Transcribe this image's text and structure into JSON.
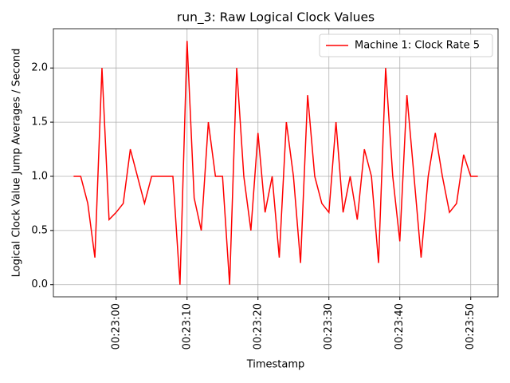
{
  "chart_data": {
    "type": "line",
    "title": "run_3: Raw Logical Clock Values",
    "x_label": "Timestamp",
    "y_label": "Logical Clock Value Jump Averages / Second",
    "x": [
      "00:22:54",
      "00:22:55",
      "00:22:56",
      "00:22:57",
      "00:22:58",
      "00:22:59",
      "00:23:00",
      "00:23:01",
      "00:23:02",
      "00:23:03",
      "00:23:04",
      "00:23:05",
      "00:23:06",
      "00:23:07",
      "00:23:08",
      "00:23:09",
      "00:23:10",
      "00:23:11",
      "00:23:12",
      "00:23:13",
      "00:23:14",
      "00:23:15",
      "00:23:16",
      "00:23:17",
      "00:23:18",
      "00:23:19",
      "00:23:20",
      "00:23:21",
      "00:23:22",
      "00:23:23",
      "00:23:24",
      "00:23:25",
      "00:23:26",
      "00:23:27",
      "00:23:28",
      "00:23:29",
      "00:23:30",
      "00:23:31",
      "00:23:32",
      "00:23:33",
      "00:23:34",
      "00:23:35",
      "00:23:36",
      "00:23:37",
      "00:23:38",
      "00:23:39",
      "00:23:40",
      "00:23:41",
      "00:23:42",
      "00:23:43",
      "00:23:44",
      "00:23:45",
      "00:23:46",
      "00:23:47",
      "00:23:48",
      "00:23:49",
      "00:23:50",
      "00:23:51"
    ],
    "series": [
      {
        "name": "Machine 1: Clock Rate 5",
        "color": "#ff0000",
        "values": [
          1.0,
          1.0,
          0.75,
          0.25,
          2.0,
          0.6,
          0.667,
          0.75,
          1.25,
          1.0,
          0.75,
          1.0,
          1.0,
          1.0,
          1.0,
          0.0,
          2.25,
          0.8,
          0.5,
          1.5,
          1.0,
          1.0,
          0.0,
          2.0,
          1.0,
          0.5,
          1.4,
          0.667,
          1.0,
          0.25,
          1.5,
          1.0,
          0.2,
          1.75,
          1.0,
          0.75,
          0.667,
          1.5,
          0.667,
          1.0,
          0.6,
          1.25,
          1.0,
          0.2,
          2.0,
          1.0,
          0.4,
          1.75,
          1.0,
          0.25,
          1.0,
          1.4,
          1.0,
          0.667,
          0.75,
          1.2,
          1.0,
          1.0
        ]
      }
    ],
    "xlim": [
      "00:22:51.15",
      "00:23:53.85"
    ],
    "xticks": [
      "00:23:00",
      "00:23:10",
      "00:23:20",
      "00:23:30",
      "00:23:40",
      "00:23:50"
    ],
    "ylim": [
      -0.1125,
      2.3625
    ],
    "yticks": [
      {
        "value": 0,
        "label": "0.0"
      },
      0.5,
      {
        "value": 1,
        "label": "1.0"
      },
      1.5,
      {
        "value": 2,
        "label": "2.0"
      }
    ],
    "grid": true,
    "legend": "upper right"
  }
}
